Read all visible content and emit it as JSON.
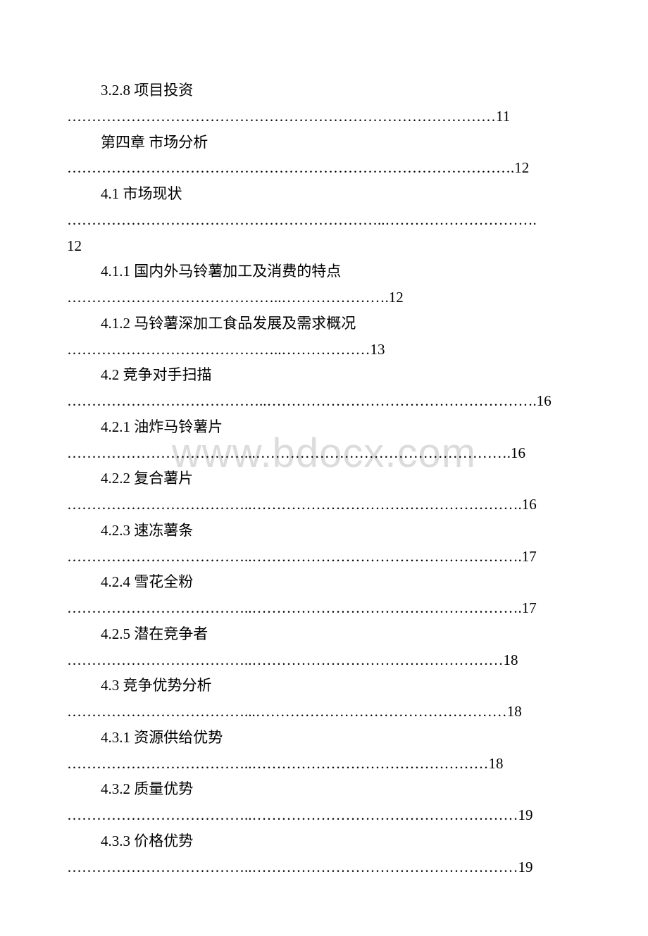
{
  "watermark": "www.bdocx.com",
  "text_color": "#000000",
  "background_color": "#ffffff",
  "watermark_color": "#dcdcdc",
  "font_size_pt": 16,
  "toc": [
    {
      "title": "3.2.8 项目投资",
      "page": "11",
      "dots": "……………………………………………………………………………"
    },
    {
      "title": "第四章 市场分析",
      "page": "12",
      "dots": "………………………………………………………………………………."
    },
    {
      "title": "4.1 市场现状",
      "page": "12",
      "dots": "………………………………………………………..………………………….",
      "wrap_page": true
    },
    {
      "title": "4.1.1 国内外马铃薯加工及消费的特点",
      "page": "12",
      "dots": "……………………………………..…………………."
    },
    {
      "title": "4.1.2 马铃薯深加工食品发展及需求概况",
      "page": "13",
      "dots": "……………………………………..………………"
    },
    {
      "title": "4.2 竞争对手扫描",
      "page": "16",
      "dots": "…………………………………..………………………………………………."
    },
    {
      "title": "4.2.1 油炸马铃薯片",
      "page": "16",
      "dots": "………………………………...……………………………………………."
    },
    {
      "title": "4.2.2 复合薯片",
      "page": "16",
      "dots": "………………………………..………………………………………………."
    },
    {
      "title": "4.2.3 速冻薯条",
      "page": "17",
      "dots": "………………………………..………………………………………………."
    },
    {
      "title": "4.2.4 雪花全粉",
      "page": "17",
      "dots": "………………………………..………………………………………………."
    },
    {
      "title": "4.2.5 潜在竞争者",
      "page": "18",
      "dots": "………………………………..……………………………………………"
    },
    {
      "title": "4.3 竞争优势分析",
      "page": "18",
      "dots": "………………………………...……………………………………………"
    },
    {
      "title": "4.3.1 资源供给优势",
      "page": "18",
      "dots": "………………………………..…………………………………………"
    },
    {
      "title": "4.3.2 质量优势",
      "page": "19",
      "dots": "………………………………..………………………………………………"
    },
    {
      "title": "4.3.3 价格优势",
      "page": "19",
      "dots": "………………………………..………………………………………………"
    }
  ]
}
